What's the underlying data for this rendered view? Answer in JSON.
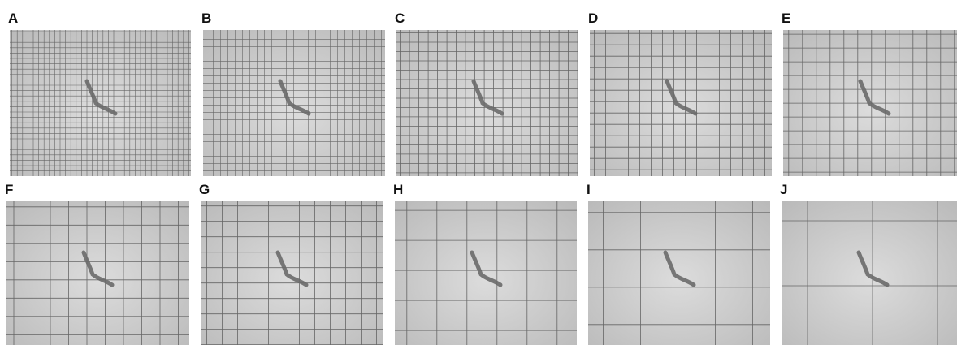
{
  "panels": [
    {
      "label": "A"
    },
    {
      "label": "B"
    },
    {
      "label": "C"
    },
    {
      "label": "D"
    },
    {
      "label": "E"
    },
    {
      "label": "F"
    },
    {
      "label": "G"
    },
    {
      "label": "H"
    },
    {
      "label": "I"
    },
    {
      "label": "J"
    }
  ]
}
